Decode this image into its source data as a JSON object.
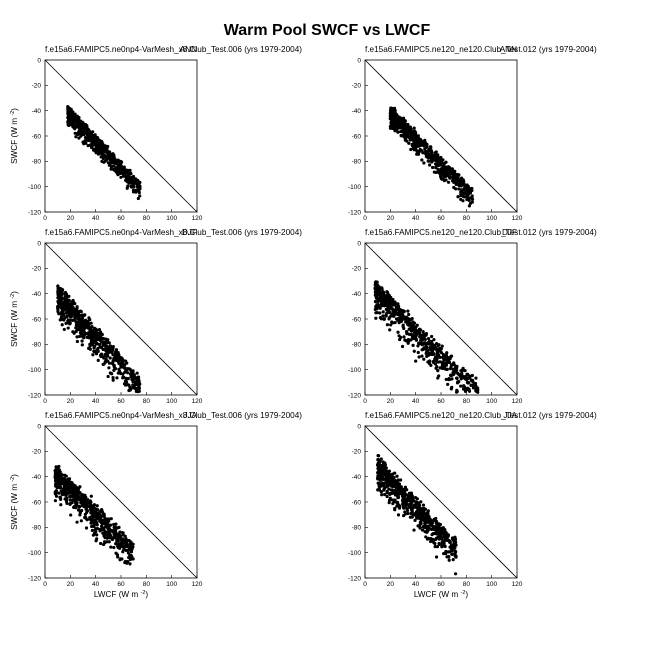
{
  "figure": {
    "title": "Warm Pool SWCF vs LWCF"
  },
  "axes": {
    "ylabel": "SWCF (W m",
    "xlabel": "LWCF (W m",
    "unit_exponent": "-2",
    "unit_close": ")",
    "xlim": [
      0,
      120
    ],
    "ylim": [
      -120,
      0
    ],
    "x_ticks": [
      "0",
      "20",
      "40",
      "60",
      "80",
      "100",
      "120"
    ],
    "y_ticks": [
      "0",
      "-20",
      "-40",
      "-60",
      "-80",
      "-100",
      "-120"
    ]
  },
  "chart_data": [
    {
      "type": "scatter",
      "case": "f.e15a6.FAMIPC5.ne0np4-VarMesh_x8.Club_Test.006 (yrs 1979-2004)",
      "season": "ANN",
      "xlim": [
        0,
        120
      ],
      "ylim": [
        -120,
        0
      ],
      "reference_line": [
        [
          0,
          0
        ],
        [
          120,
          -120
        ]
      ],
      "cloud": {
        "x_range": [
          18,
          75
        ],
        "slope": -1.05,
        "intercept": -22,
        "spread": 6
      }
    },
    {
      "type": "scatter",
      "case": "f.e15a6.FAMIPC5.ne120_ne120.Club_Test.012 (yrs 1979-2004)",
      "season": "ANN",
      "xlim": [
        0,
        120
      ],
      "ylim": [
        -120,
        0
      ],
      "reference_line": [
        [
          0,
          0
        ],
        [
          120,
          -120
        ]
      ],
      "cloud": {
        "x_range": [
          20,
          85
        ],
        "slope": -1.0,
        "intercept": -22,
        "spread": 7
      }
    },
    {
      "type": "scatter",
      "case": "f.e15a6.FAMIPC5.ne0np4-VarMesh_x8.Club_Test.006 (yrs 1979-2004)",
      "season": "DJF",
      "xlim": [
        0,
        120
      ],
      "ylim": [
        -120,
        0
      ],
      "reference_line": [
        [
          0,
          0
        ],
        [
          120,
          -120
        ]
      ],
      "cloud": {
        "x_range": [
          10,
          75
        ],
        "slope": -1.1,
        "intercept": -30,
        "spread": 10
      }
    },
    {
      "type": "scatter",
      "case": "f.e15a6.FAMIPC5.ne120_ne120.Club_Test.012 (yrs 1979-2004)",
      "season": "DJF",
      "xlim": [
        0,
        120
      ],
      "ylim": [
        -120,
        0
      ],
      "reference_line": [
        [
          0,
          0
        ],
        [
          120,
          -120
        ]
      ],
      "cloud": {
        "x_range": [
          8,
          90
        ],
        "slope": -1.0,
        "intercept": -30,
        "spread": 10
      }
    },
    {
      "type": "scatter",
      "case": "f.e15a6.FAMIPC5.ne0np4-VarMesh_x8.Club_Test.006 (yrs 1979-2004)",
      "season": "JJA",
      "xlim": [
        0,
        120
      ],
      "ylim": [
        -120,
        0
      ],
      "reference_line": [
        [
          0,
          0
        ],
        [
          120,
          -120
        ]
      ],
      "cloud": {
        "x_range": [
          8,
          70
        ],
        "slope": -1.0,
        "intercept": -30,
        "spread": 10
      }
    },
    {
      "type": "scatter",
      "case": "f.e15a6.FAMIPC5.ne120_ne120.Club_Test.012 (yrs 1979-2004)",
      "season": "JJA",
      "xlim": [
        0,
        120
      ],
      "ylim": [
        -120,
        0
      ],
      "reference_line": [
        [
          0,
          0
        ],
        [
          120,
          -120
        ]
      ],
      "cloud": {
        "x_range": [
          10,
          72
        ],
        "slope": -1.05,
        "intercept": -22,
        "spread": 10
      }
    }
  ]
}
